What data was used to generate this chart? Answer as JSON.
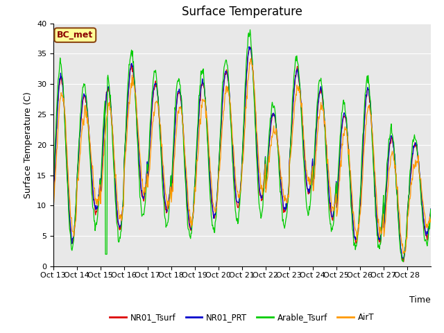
{
  "title": "Surface Temperature",
  "ylabel": "Surface Temperature (C)",
  "xlabel": "Time",
  "annotation": "BC_met",
  "ylim": [
    0,
    40
  ],
  "legend_labels": [
    "NR01_Tsurf",
    "NR01_PRT",
    "Arable_Tsurf",
    "AirT"
  ],
  "colors": {
    "NR01_Tsurf": "#dd0000",
    "NR01_PRT": "#0000cc",
    "Arable_Tsurf": "#00cc00",
    "AirT": "#ff9900"
  },
  "bg_color": "#e8e8e8",
  "xtick_labels": [
    "Oct 13",
    "Oct 14",
    "Oct 15",
    "Oct 16",
    "Oct 17",
    "Oct 18",
    "Oct 19",
    "Oct 20",
    "Oct 21",
    "Oct 22",
    "Oct 23",
    "Oct 24",
    "Oct 25",
    "Oct 26",
    "Oct 27",
    "Oct 28"
  ],
  "n_days": 16,
  "pts_per_day": 48,
  "daily_peaks": [
    31,
    28,
    29,
    33,
    30,
    29,
    30,
    32,
    36,
    25,
    32,
    29,
    25,
    29,
    21,
    20
  ],
  "daily_mins": [
    4,
    9,
    6,
    11,
    9,
    6,
    8,
    10,
    11,
    9,
    12,
    8,
    4,
    4,
    1,
    5
  ]
}
